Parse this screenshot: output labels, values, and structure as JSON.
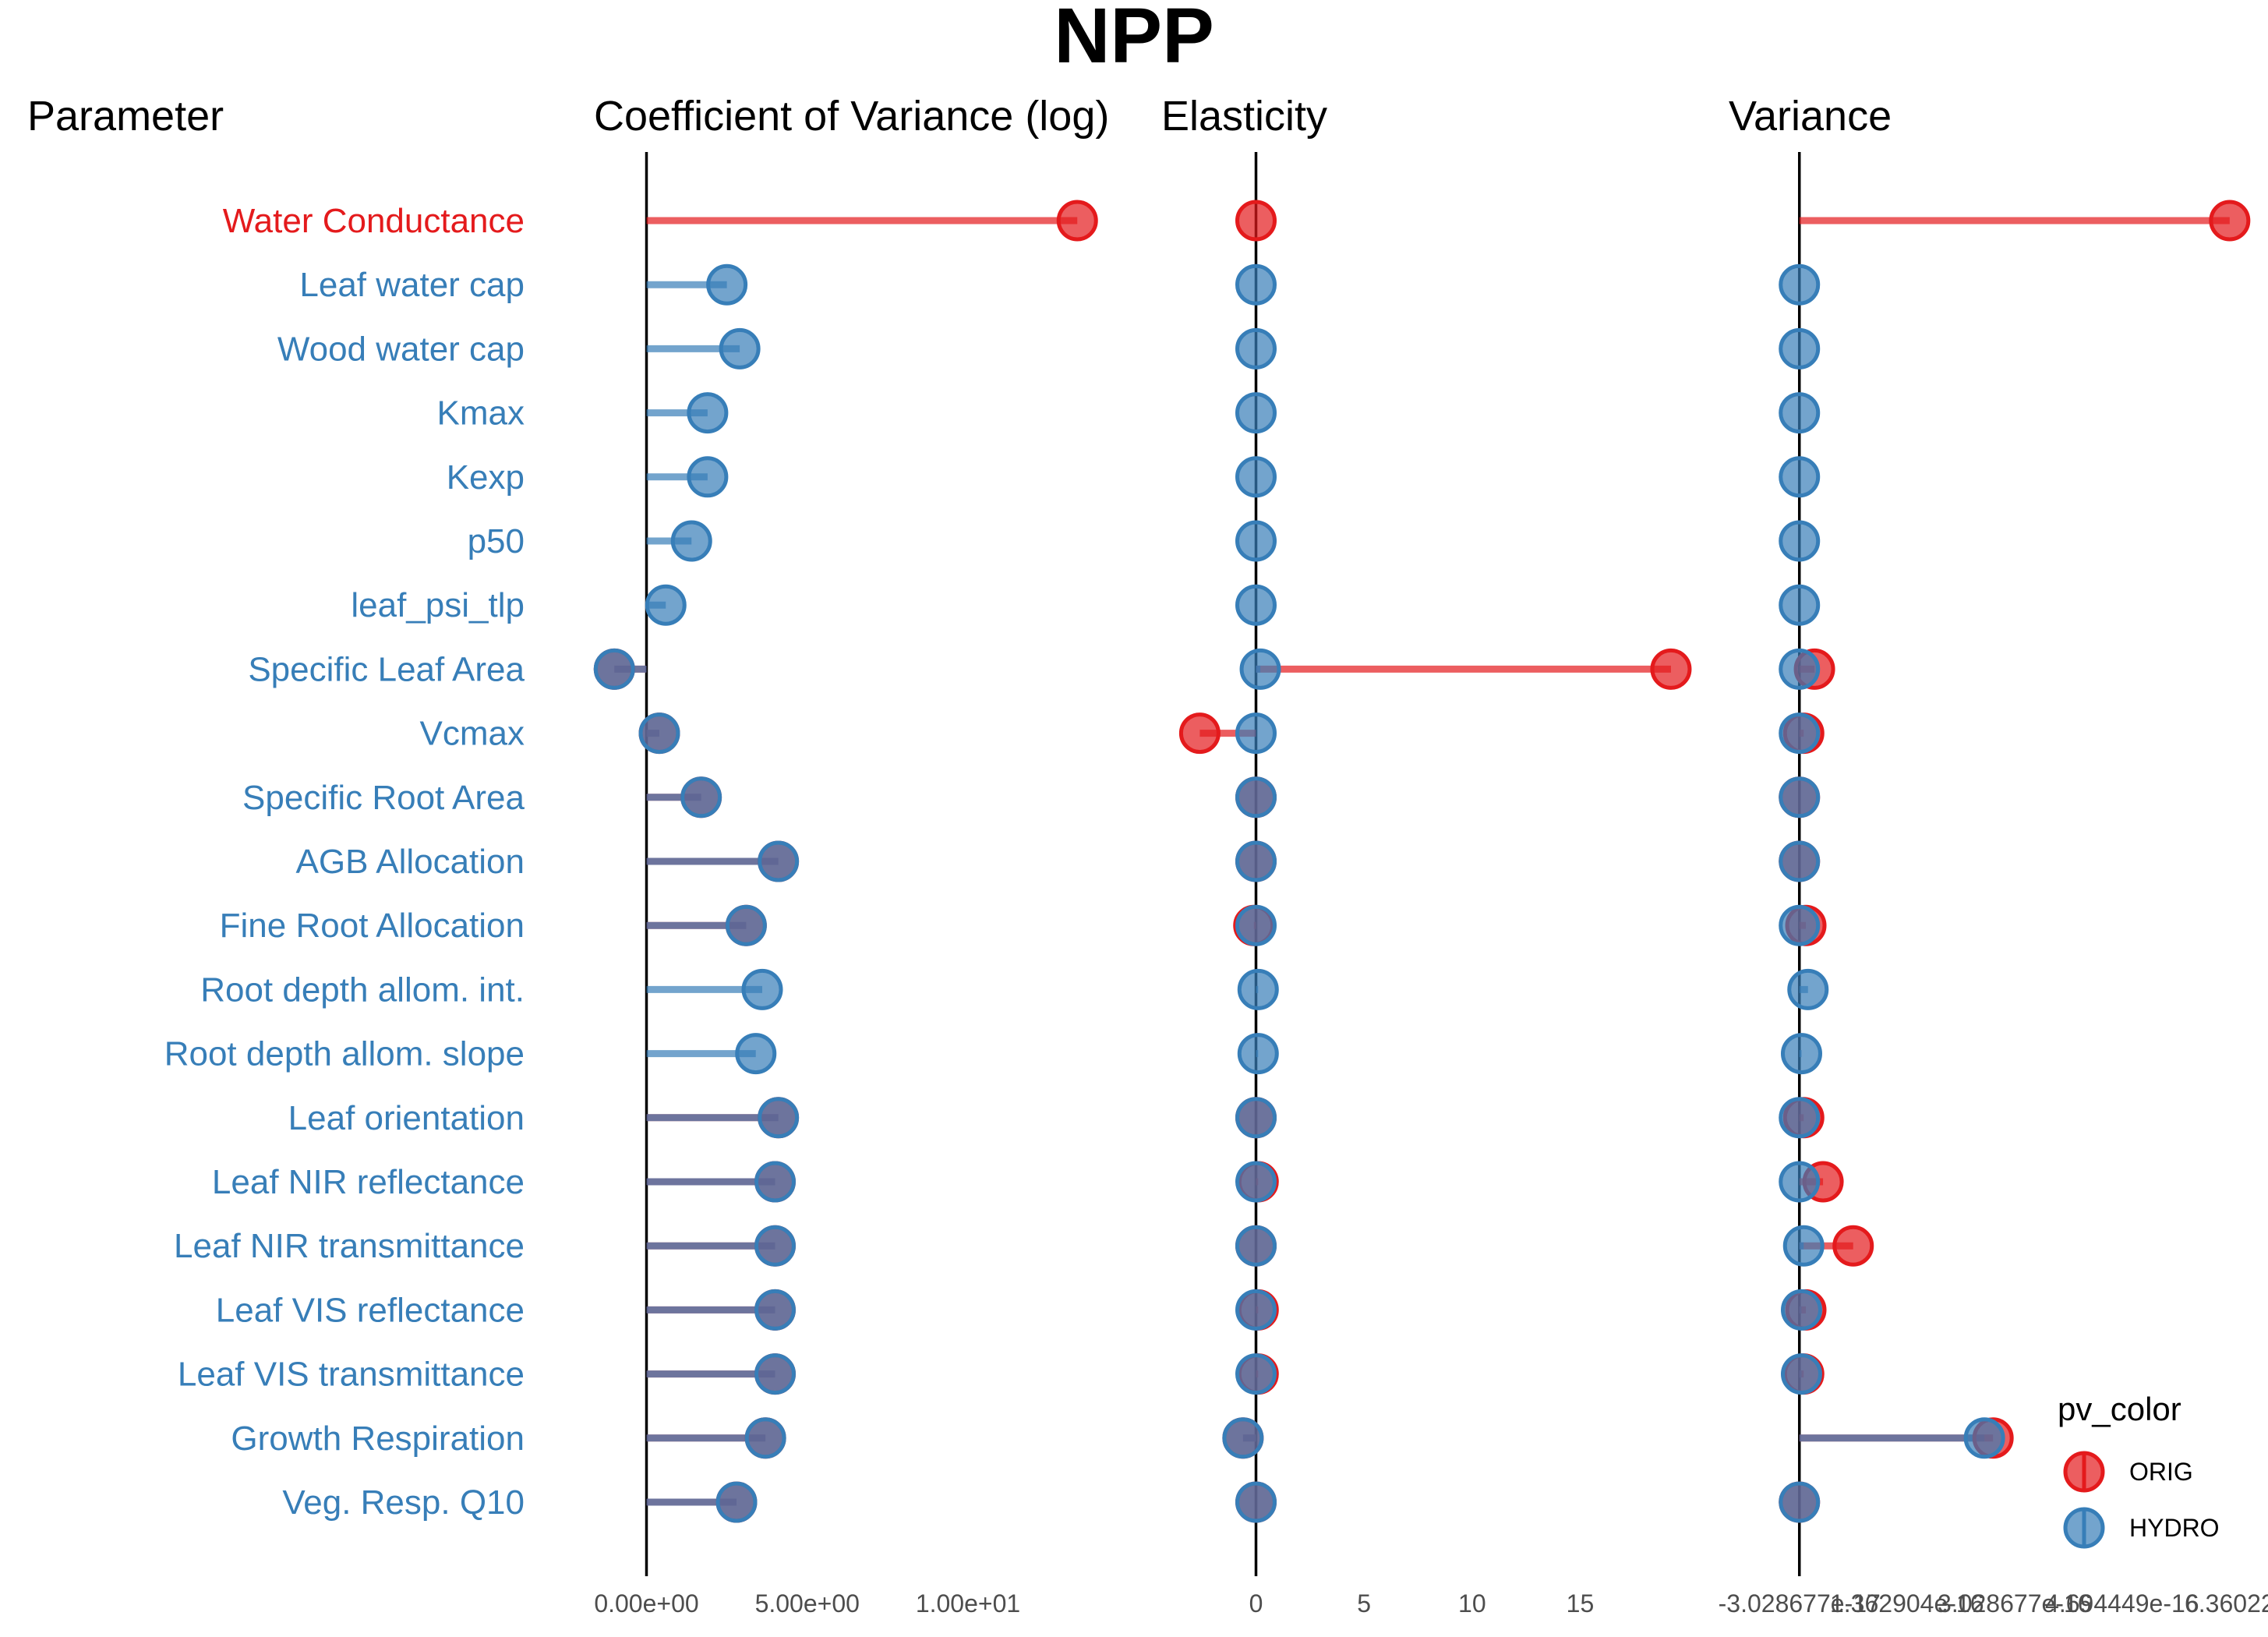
{
  "chart_data": {
    "type": "lollipop",
    "title": "NPP",
    "headers": {
      "parameter": "Parameter",
      "cv": "Coefficient of Variance (log)",
      "elasticity": "Elasticity",
      "variance": "Variance"
    },
    "parameters": [
      {
        "name": "Water Conductance",
        "label_color": "#e41a1c",
        "cv": {
          "ORIG": 13.4
        },
        "elasticity": {
          "ORIG": 0.0
        },
        "variance": {
          "ORIG": 1.0
        }
      },
      {
        "name": "Leaf water cap",
        "label_color": "#377eb8",
        "cv": {
          "HYDRO": 2.5
        },
        "elasticity": {
          "HYDRO": 0.0
        },
        "variance": {
          "HYDRO": 0.0
        }
      },
      {
        "name": "Wood water cap",
        "label_color": "#377eb8",
        "cv": {
          "HYDRO": 2.9
        },
        "elasticity": {
          "HYDRO": 0.0
        },
        "variance": {
          "HYDRO": 0.0
        }
      },
      {
        "name": "Kmax",
        "label_color": "#377eb8",
        "cv": {
          "HYDRO": 1.9
        },
        "elasticity": {
          "HYDRO": 0.0
        },
        "variance": {
          "HYDRO": 0.0
        }
      },
      {
        "name": "Kexp",
        "label_color": "#377eb8",
        "cv": {
          "HYDRO": 1.9
        },
        "elasticity": {
          "HYDRO": 0.0
        },
        "variance": {
          "HYDRO": 0.0
        }
      },
      {
        "name": "p50",
        "label_color": "#377eb8",
        "cv": {
          "HYDRO": 1.4
        },
        "elasticity": {
          "HYDRO": 0.0
        },
        "variance": {
          "HYDRO": 0.0
        }
      },
      {
        "name": "leaf_psi_tlp",
        "label_color": "#377eb8",
        "cv": {
          "HYDRO": 0.6
        },
        "elasticity": {
          "HYDRO": 0.0
        },
        "variance": {
          "HYDRO": 0.0
        }
      },
      {
        "name": "Specific Leaf Area",
        "label_color": "#377eb8",
        "cv": {
          "ORIG": -1.0,
          "HYDRO": -1.0
        },
        "elasticity": {
          "ORIG": 19.2,
          "HYDRO": 0.2
        },
        "variance": {
          "ORIG": 0.035,
          "HYDRO": 0.0
        }
      },
      {
        "name": "Vcmax",
        "label_color": "#377eb8",
        "cv": {
          "ORIG": 0.4,
          "HYDRO": 0.4
        },
        "elasticity": {
          "ORIG": -2.6,
          "HYDRO": 0.0
        },
        "variance": {
          "ORIG": 0.01,
          "HYDRO": 0.0
        }
      },
      {
        "name": "Specific Root Area",
        "label_color": "#377eb8",
        "cv": {
          "ORIG": 1.7,
          "HYDRO": 1.7
        },
        "elasticity": {
          "ORIG": 0.0,
          "HYDRO": 0.0
        },
        "variance": {
          "ORIG": 0.0,
          "HYDRO": 0.0
        }
      },
      {
        "name": "AGB Allocation",
        "label_color": "#377eb8",
        "cv": {
          "ORIG": 4.1,
          "HYDRO": 4.1
        },
        "elasticity": {
          "ORIG": 0.0,
          "HYDRO": 0.0
        },
        "variance": {
          "ORIG": 0.0,
          "HYDRO": 0.0
        }
      },
      {
        "name": "Fine Root Allocation",
        "label_color": "#377eb8",
        "cv": {
          "ORIG": 3.1,
          "HYDRO": 3.1
        },
        "elasticity": {
          "ORIG": -0.1,
          "HYDRO": 0.0
        },
        "variance": {
          "ORIG": 0.015,
          "HYDRO": 0.0
        }
      },
      {
        "name": "Root depth allom. int.",
        "label_color": "#377eb8",
        "cv": {
          "HYDRO": 3.6
        },
        "elasticity": {
          "HYDRO": 0.1
        },
        "variance": {
          "HYDRO": 0.02
        }
      },
      {
        "name": "Root depth allom. slope",
        "label_color": "#377eb8",
        "cv": {
          "HYDRO": 3.4
        },
        "elasticity": {
          "HYDRO": 0.1
        },
        "variance": {
          "HYDRO": 0.005
        }
      },
      {
        "name": "Leaf orientation",
        "label_color": "#377eb8",
        "cv": {
          "ORIG": 4.1,
          "HYDRO": 4.1
        },
        "elasticity": {
          "ORIG": 0.0,
          "HYDRO": 0.0
        },
        "variance": {
          "ORIG": 0.01,
          "HYDRO": 0.0
        }
      },
      {
        "name": "Leaf NIR reflectance",
        "label_color": "#377eb8",
        "cv": {
          "ORIG": 4.0,
          "HYDRO": 4.0
        },
        "elasticity": {
          "ORIG": 0.1,
          "HYDRO": 0.0
        },
        "variance": {
          "ORIG": 0.055,
          "HYDRO": 0.0
        }
      },
      {
        "name": "Leaf NIR transmittance",
        "label_color": "#377eb8",
        "cv": {
          "ORIG": 4.0,
          "HYDRO": 4.0
        },
        "elasticity": {
          "ORIG": 0.0,
          "HYDRO": 0.0
        },
        "variance": {
          "ORIG": 0.125,
          "HYDRO": 0.01
        }
      },
      {
        "name": "Leaf VIS reflectance",
        "label_color": "#377eb8",
        "cv": {
          "ORIG": 4.0,
          "HYDRO": 4.0
        },
        "elasticity": {
          "ORIG": 0.1,
          "HYDRO": 0.0
        },
        "variance": {
          "ORIG": 0.015,
          "HYDRO": 0.005
        }
      },
      {
        "name": "Leaf VIS transmittance",
        "label_color": "#377eb8",
        "cv": {
          "ORIG": 4.0,
          "HYDRO": 4.0
        },
        "elasticity": {
          "ORIG": 0.1,
          "HYDRO": 0.0
        },
        "variance": {
          "ORIG": 0.01,
          "HYDRO": 0.005
        }
      },
      {
        "name": "Growth Respiration",
        "label_color": "#377eb8",
        "cv": {
          "ORIG": 3.7,
          "HYDRO": 3.7
        },
        "elasticity": {
          "ORIG": -0.6,
          "HYDRO": -0.6
        },
        "variance": {
          "ORIG": 0.45,
          "HYDRO": 0.43
        }
      },
      {
        "name": "Veg. Resp. Q10",
        "label_color": "#377eb8",
        "cv": {
          "ORIG": 2.8,
          "HYDRO": 2.8
        },
        "elasticity": {
          "ORIG": 0.0,
          "HYDRO": 0.0
        },
        "variance": {
          "ORIG": 0.0,
          "HYDRO": 0.0
        }
      }
    ],
    "axes": {
      "cv": {
        "xlim": [
          -1.2,
          14.8
        ],
        "ticks": [
          0,
          5,
          10
        ],
        "tick_labels": [
          "0.00e+00",
          "5.00e+00",
          "1.00e+01"
        ]
      },
      "elasticity": {
        "xlim": [
          -3.3,
          20.5
        ],
        "ticks": [
          0,
          5,
          10,
          15
        ],
        "tick_labels": [
          "0",
          "5",
          "10",
          "15"
        ]
      },
      "variance": {
        "xlim": [
          -0.11,
          1.08
        ],
        "ticks": [
          0.0,
          0.25,
          0.5,
          0.75,
          1.0
        ],
        "tick_labels": [
          "-3.028677e-17",
          "1.362904e-16",
          "3.028677e-16",
          "4.694449e-16",
          "6.36022"
        ]
      }
    },
    "legend": {
      "title": "pv_color",
      "position": "right",
      "entries": [
        {
          "key": "ORIG",
          "label": "ORIG",
          "color": "#e41a1c"
        },
        {
          "key": "HYDRO",
          "label": "HYDRO",
          "color": "#377eb8"
        }
      ]
    },
    "grid": false
  }
}
